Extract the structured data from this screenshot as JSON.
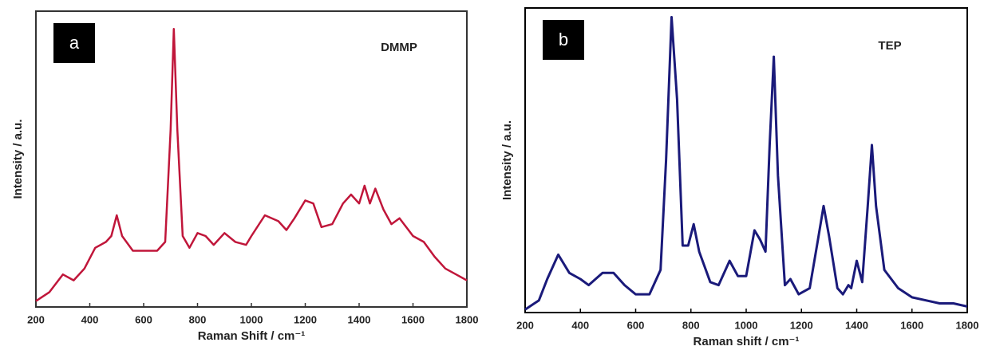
{
  "chart_data": [
    {
      "type": "line",
      "panel_label": "a",
      "annotation": "DMMP",
      "xlabel": "Raman Shift / cm⁻¹",
      "ylabel": "Intensity / a.u.",
      "color": "#c0163a",
      "x": [
        200,
        250,
        300,
        340,
        380,
        420,
        460,
        480,
        500,
        520,
        560,
        600,
        650,
        680,
        700,
        712,
        725,
        745,
        770,
        800,
        830,
        860,
        900,
        940,
        980,
        1000,
        1050,
        1100,
        1130,
        1160,
        1200,
        1230,
        1260,
        1300,
        1340,
        1370,
        1400,
        1420,
        1440,
        1460,
        1490,
        1520,
        1550,
        1600,
        1640,
        1680,
        1720,
        1760,
        1800
      ],
      "values": [
        2,
        5,
        11,
        9,
        13,
        20,
        22,
        24,
        31,
        24,
        19,
        19,
        19,
        22,
        60,
        94,
        60,
        24,
        20,
        25,
        24,
        21,
        25,
        22,
        21,
        24,
        31,
        29,
        26,
        30,
        36,
        35,
        27,
        28,
        35,
        38,
        35,
        41,
        35,
        40,
        33,
        28,
        30,
        24,
        22,
        17,
        13,
        11,
        9
      ],
      "xlim": [
        200,
        1800
      ],
      "ylim": [
        0,
        100
      ],
      "xticks": [
        200,
        400,
        600,
        800,
        1000,
        1200,
        1400,
        1600,
        1800
      ]
    },
    {
      "type": "line",
      "panel_label": "b",
      "annotation": "TEP",
      "xlabel": "Raman shift / cm⁻¹",
      "ylabel": "Intensity / a.u.",
      "color": "#1a1a7a",
      "x": [
        200,
        250,
        280,
        320,
        360,
        400,
        430,
        480,
        520,
        560,
        600,
        650,
        690,
        710,
        730,
        750,
        770,
        790,
        810,
        830,
        870,
        900,
        940,
        970,
        1000,
        1030,
        1050,
        1070,
        1085,
        1100,
        1115,
        1140,
        1160,
        1190,
        1230,
        1260,
        1280,
        1300,
        1330,
        1350,
        1370,
        1380,
        1400,
        1420,
        1440,
        1455,
        1470,
        1500,
        1550,
        1600,
        1650,
        1700,
        1750,
        1800
      ],
      "values": [
        1,
        4,
        11,
        19,
        13,
        11,
        9,
        13,
        13,
        9,
        6,
        6,
        14,
        50,
        97,
        70,
        22,
        22,
        29,
        20,
        10,
        9,
        17,
        12,
        12,
        27,
        24,
        20,
        55,
        84,
        45,
        9,
        11,
        6,
        8,
        24,
        35,
        25,
        8,
        6,
        9,
        8,
        17,
        10,
        35,
        55,
        35,
        14,
        8,
        5,
        4,
        3,
        3,
        2
      ],
      "xlim": [
        200,
        1800
      ],
      "ylim": [
        0,
        100
      ],
      "xticks": [
        200,
        400,
        600,
        800,
        1000,
        1200,
        1400,
        1600,
        1800
      ]
    }
  ]
}
